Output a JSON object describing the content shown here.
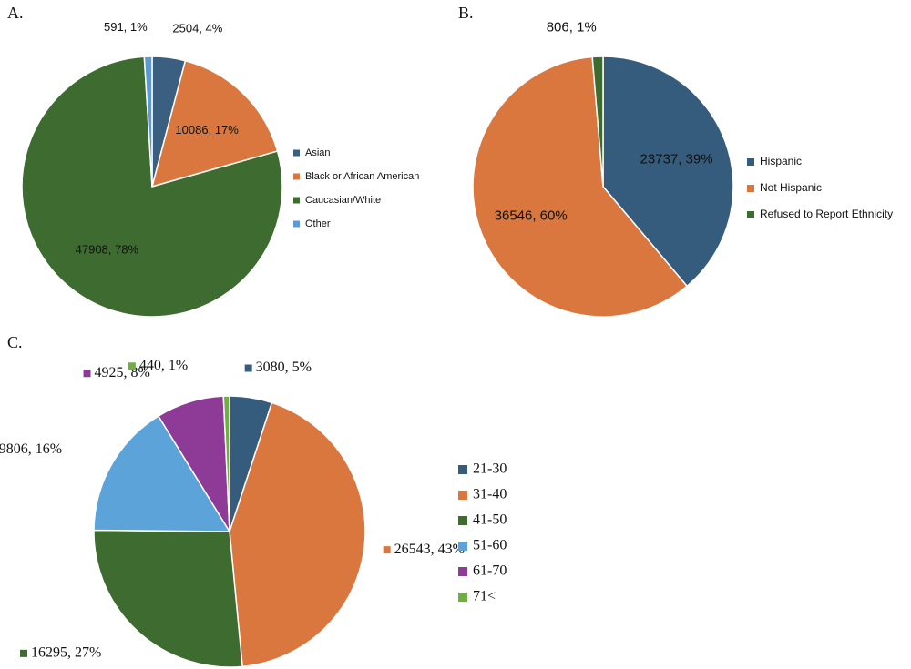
{
  "chart_data": [
    {
      "type": "pie",
      "title": "A.",
      "categories": [
        "Asian",
        "Black or African American",
        "Caucasian/White",
        "Other"
      ],
      "values": [
        2504,
        10086,
        47908,
        591
      ],
      "value_labels": [
        "2504, 4%",
        "10086, 17%",
        "47908, 78%",
        "591, 1%"
      ],
      "colors": [
        "#3b5f80",
        "#d9773f",
        "#3e6b30",
        "#5b9bd5"
      ]
    },
    {
      "type": "pie",
      "title": "B.",
      "categories": [
        "Hispanic",
        "Not Hispanic",
        "Refused to Report Ethnicity"
      ],
      "values": [
        23737,
        36546,
        806
      ],
      "value_labels": [
        "23737, 39%",
        "36546, 60%",
        "806, 1%"
      ],
      "colors": [
        "#365c7d",
        "#d9773f",
        "#3e6b30"
      ]
    },
    {
      "type": "pie",
      "title": "C.",
      "categories": [
        "21-30",
        "31-40",
        "41-50",
        "51-60",
        "61-70",
        "71<"
      ],
      "values": [
        3080,
        26543,
        16295,
        9806,
        4925,
        440
      ],
      "value_labels": [
        "3080, 5%",
        "26543, 43%",
        "16295, 27%",
        "9806, 16%",
        "4925, 8%",
        "440, 1%"
      ],
      "colors": [
        "#365c7d",
        "#d9773f",
        "#3e6b30",
        "#5ba3d9",
        "#8e3b97",
        "#70ad47"
      ]
    }
  ]
}
